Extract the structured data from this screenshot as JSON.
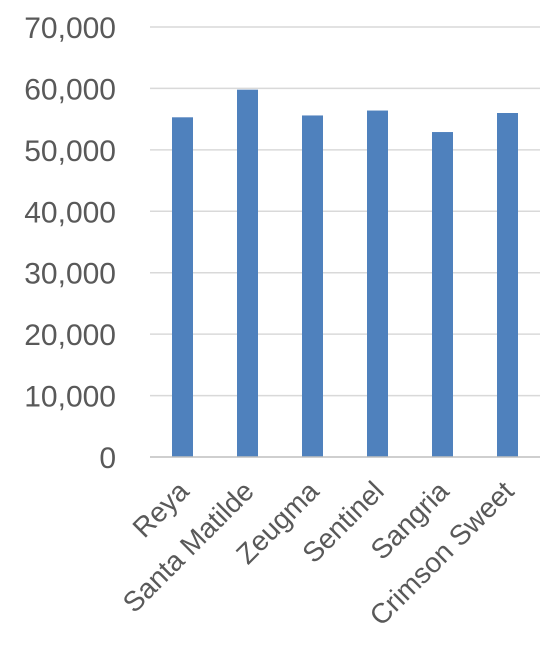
{
  "chart_data": {
    "type": "bar",
    "categories": [
      "Reya",
      "Santa Matilde",
      "Zeugma",
      "Sentinel",
      "Sangria",
      "Crimson Sweet"
    ],
    "values": [
      55300,
      59800,
      55600,
      56400,
      52900,
      56000
    ],
    "ylim": [
      0,
      70000
    ],
    "yticks": [
      0,
      10000,
      20000,
      30000,
      40000,
      50000,
      60000,
      70000
    ],
    "ytick_labels": [
      "0",
      "10,000",
      "20,000",
      "30,000",
      "40,000",
      "50,000",
      "60,000",
      "70,000"
    ],
    "grid": true,
    "legend": "none",
    "bar_color": "#4f81bd"
  }
}
